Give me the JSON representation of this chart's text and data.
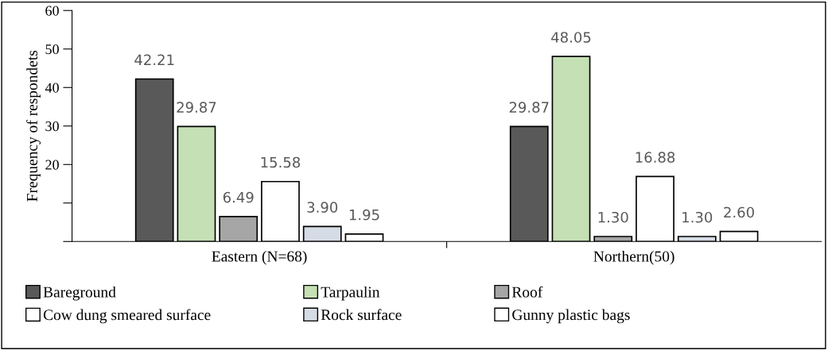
{
  "chart_data": {
    "type": "bar",
    "ylabel": "Frequency of respondets",
    "categories": [
      "Eastern (N=68)",
      "Northern(50)"
    ],
    "series": [
      {
        "name": "Bareground",
        "color": "#595959",
        "values": [
          42.21,
          29.87
        ],
        "value_labels": [
          "42.21",
          "29.87"
        ]
      },
      {
        "name": "Tarpaulin",
        "color": "#c5e0b4",
        "values": [
          29.87,
          48.05
        ],
        "value_labels": [
          "29.87",
          "48.05"
        ]
      },
      {
        "name": "Roof",
        "color": "#a6a6a6",
        "values": [
          6.49,
          1.3
        ],
        "value_labels": [
          "6.49",
          "1.30"
        ]
      },
      {
        "name": "Cow dung smeared surface",
        "color": "#ffffff",
        "values": [
          15.58,
          16.88
        ],
        "value_labels": [
          "15.58",
          "16.88"
        ]
      },
      {
        "name": "Rock surface",
        "color": "#d6dce5",
        "values": [
          3.9,
          1.3
        ],
        "value_labels": [
          "3.90",
          "1.30"
        ]
      },
      {
        "name": "Gunny plastic bags",
        "color": "#ffffff",
        "values": [
          1.95,
          2.6
        ],
        "value_labels": [
          "1.95",
          "2.60"
        ]
      }
    ],
    "ylim": [
      0,
      60
    ],
    "yticks": [
      {
        "value": 0,
        "label": null
      },
      {
        "value": 10,
        "label": null
      },
      20,
      30,
      40,
      50,
      60
    ],
    "grid": false,
    "legend": "bottom"
  }
}
